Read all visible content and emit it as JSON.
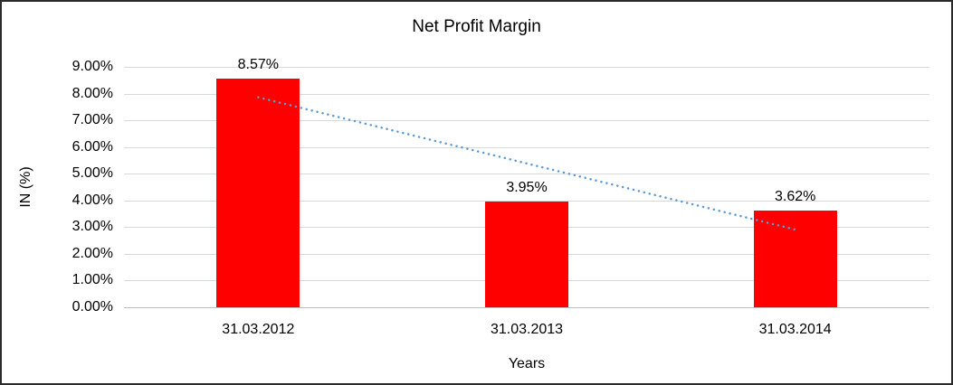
{
  "chart_data": {
    "type": "bar",
    "title": "Net Profit Margin",
    "xlabel": "Years",
    "ylabel": "IN (%)",
    "categories": [
      "31.03.2012",
      "31.03.2013",
      "31.03.2014"
    ],
    "values": [
      8.57,
      3.95,
      3.62
    ],
    "data_labels": [
      "8.57%",
      "3.95%",
      "3.62%"
    ],
    "ylim": [
      0,
      9
    ],
    "ytick_step": 1,
    "ytick_labels": [
      "0.00%",
      "1.00%",
      "2.00%",
      "3.00%",
      "4.00%",
      "5.00%",
      "6.00%",
      "7.00%",
      "8.00%",
      "9.00%"
    ],
    "grid": true,
    "legend": "none",
    "bar_color": "#ff0000",
    "gridline_color": "#d9d9d9",
    "baseline_color": "#bfbfbf",
    "trendline": {
      "style": "dotted",
      "color": "#5b9bd5",
      "y_start": 7.86,
      "y_end": 2.91
    }
  }
}
